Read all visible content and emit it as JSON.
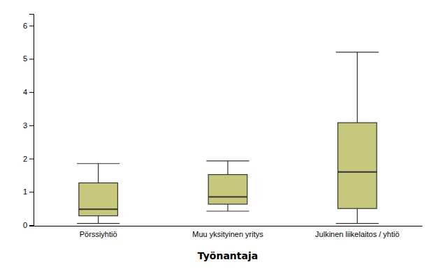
{
  "chart_data": {
    "type": "box",
    "categories": [
      "Pörssiyhtiö",
      "Muu yksityinen yritys",
      "Julkinen liikelaitos / yhtiö"
    ],
    "boxes": [
      {
        "whisker_low": 0.05,
        "q1": 0.28,
        "median": 0.48,
        "q3": 1.27,
        "whisker_high": 1.85
      },
      {
        "whisker_low": 0.42,
        "q1": 0.63,
        "median": 0.85,
        "q3": 1.52,
        "whisker_high": 1.93
      },
      {
        "whisker_low": 0.05,
        "q1": 0.5,
        "median": 1.6,
        "q3": 3.08,
        "whisker_high": 5.2
      }
    ],
    "color": "#c8c87d",
    "xlabel": "Työnantaja",
    "ylim": [
      -0.02,
      6.35
    ],
    "yticks": [
      0,
      1,
      2,
      3,
      4,
      5,
      6
    ],
    "grid": false
  }
}
